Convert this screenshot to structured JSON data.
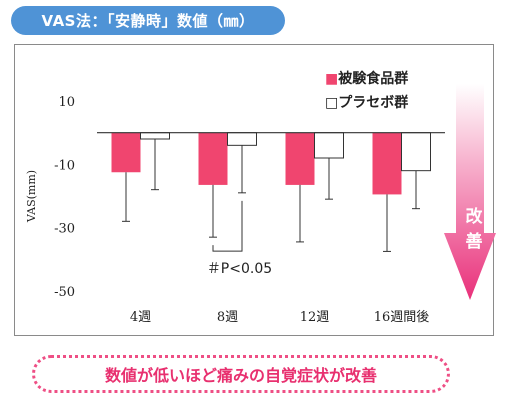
{
  "header": {
    "title": "VAS法：「安静時」数値（㎜）"
  },
  "caption": "数値が低いほど痛みの自覚症状が改善",
  "arrow": {
    "label_line1": "改",
    "label_line2": "善",
    "color_top": "#ffffff",
    "color_bottom": "#e9307a"
  },
  "chart_data": {
    "type": "bar",
    "title": "",
    "xlabel": "",
    "ylabel": "VAS(mm)",
    "ylim": [
      -50,
      10
    ],
    "yticks": [
      10,
      -10,
      -30,
      -50
    ],
    "categories": [
      "4週",
      "8週",
      "12週",
      "16週間後"
    ],
    "series": [
      {
        "name": "被験食品群",
        "color": "#f0456f",
        "legend_marker": "■",
        "values": [
          -12.5,
          -16.5,
          -16.5,
          -19.5
        ],
        "errors": [
          15.5,
          16.5,
          18,
          18
        ]
      },
      {
        "name": "プラセボ群",
        "color": "#ffffff",
        "legend_marker": "□",
        "values": [
          -2,
          -4,
          -8,
          -12
        ],
        "errors": [
          16,
          15,
          13,
          12
        ]
      }
    ],
    "annotation": {
      "text": "＃P<0.05",
      "category": "8週"
    }
  }
}
